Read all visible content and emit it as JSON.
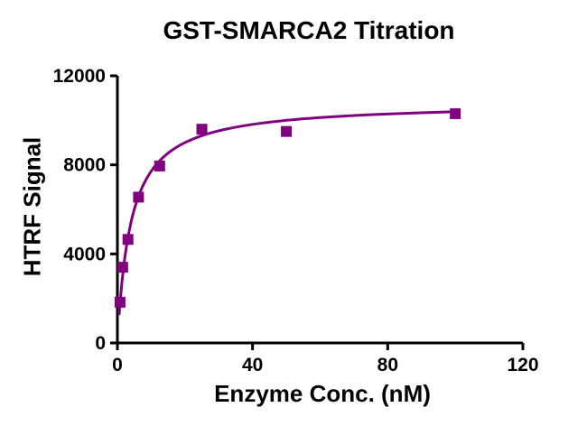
{
  "chart_data": {
    "type": "scatter",
    "title": "GST-SMARCA2 Titration",
    "xlabel": "Enzyme Conc. (nM)",
    "ylabel": "HTRF Signal",
    "xlim": [
      0,
      120
    ],
    "ylim": [
      0,
      12000
    ],
    "x_ticks": [
      0,
      40,
      80,
      120
    ],
    "y_ticks": [
      0,
      4000,
      8000,
      12000
    ],
    "grid": false,
    "legend": "none",
    "axis_color": "#000000",
    "background_color": "#ffffff",
    "series": [
      {
        "name": "GST-SMARCA2",
        "marker": "square",
        "marker_color": "#800080",
        "points": [
          {
            "x": 0.78,
            "y": 1830
          },
          {
            "x": 1.56,
            "y": 3400
          },
          {
            "x": 3.13,
            "y": 4650
          },
          {
            "x": 6.25,
            "y": 6550
          },
          {
            "x": 12.5,
            "y": 7950
          },
          {
            "x": 25,
            "y": 9600
          },
          {
            "x": 50,
            "y": 9500
          },
          {
            "x": 100,
            "y": 10300
          }
        ]
      }
    ],
    "fit_curve": {
      "model": "one_site_binding",
      "equation": "Y = Bmax*X / (Kd + X)",
      "bmax": 10800,
      "kd": 4,
      "x_start": 0.55,
      "x_end": 100,
      "color": "#800080"
    }
  }
}
